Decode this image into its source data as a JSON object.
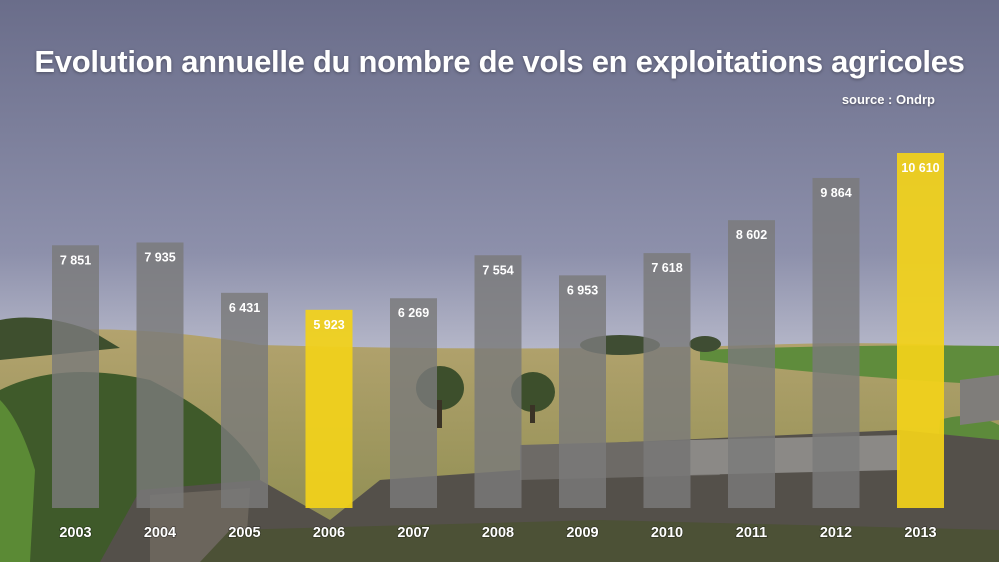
{
  "header": {
    "title": "Evolution annuelle du nombre de vols en exploitations agricoles",
    "source": "source : Ondrp"
  },
  "colors": {
    "bar_default": "#7a7a7a",
    "bar_highlight": "#f2d21a",
    "label_text": "#ffffff"
  },
  "chart_data": {
    "type": "bar",
    "title": "Evolution annuelle du nombre de vols en exploitations agricoles",
    "subtitle": "source : Ondrp",
    "categories": [
      "2003",
      "2004",
      "2005",
      "2006",
      "2007",
      "2008",
      "2009",
      "2010",
      "2011",
      "2012",
      "2013"
    ],
    "values": [
      7851,
      7935,
      6431,
      5923,
      6269,
      7554,
      6953,
      7618,
      8602,
      9864,
      10610
    ],
    "value_labels": [
      "7 851",
      "7 935",
      "6 431",
      "5 923",
      "6 269",
      "7 554",
      "6 953",
      "7 618",
      "8 602",
      "9 864",
      "10 610"
    ],
    "highlighted": [
      "2006",
      "2013"
    ],
    "xlabel": "",
    "ylabel": "",
    "ylim": [
      0,
      10610
    ],
    "grid": false,
    "legend": "none"
  }
}
